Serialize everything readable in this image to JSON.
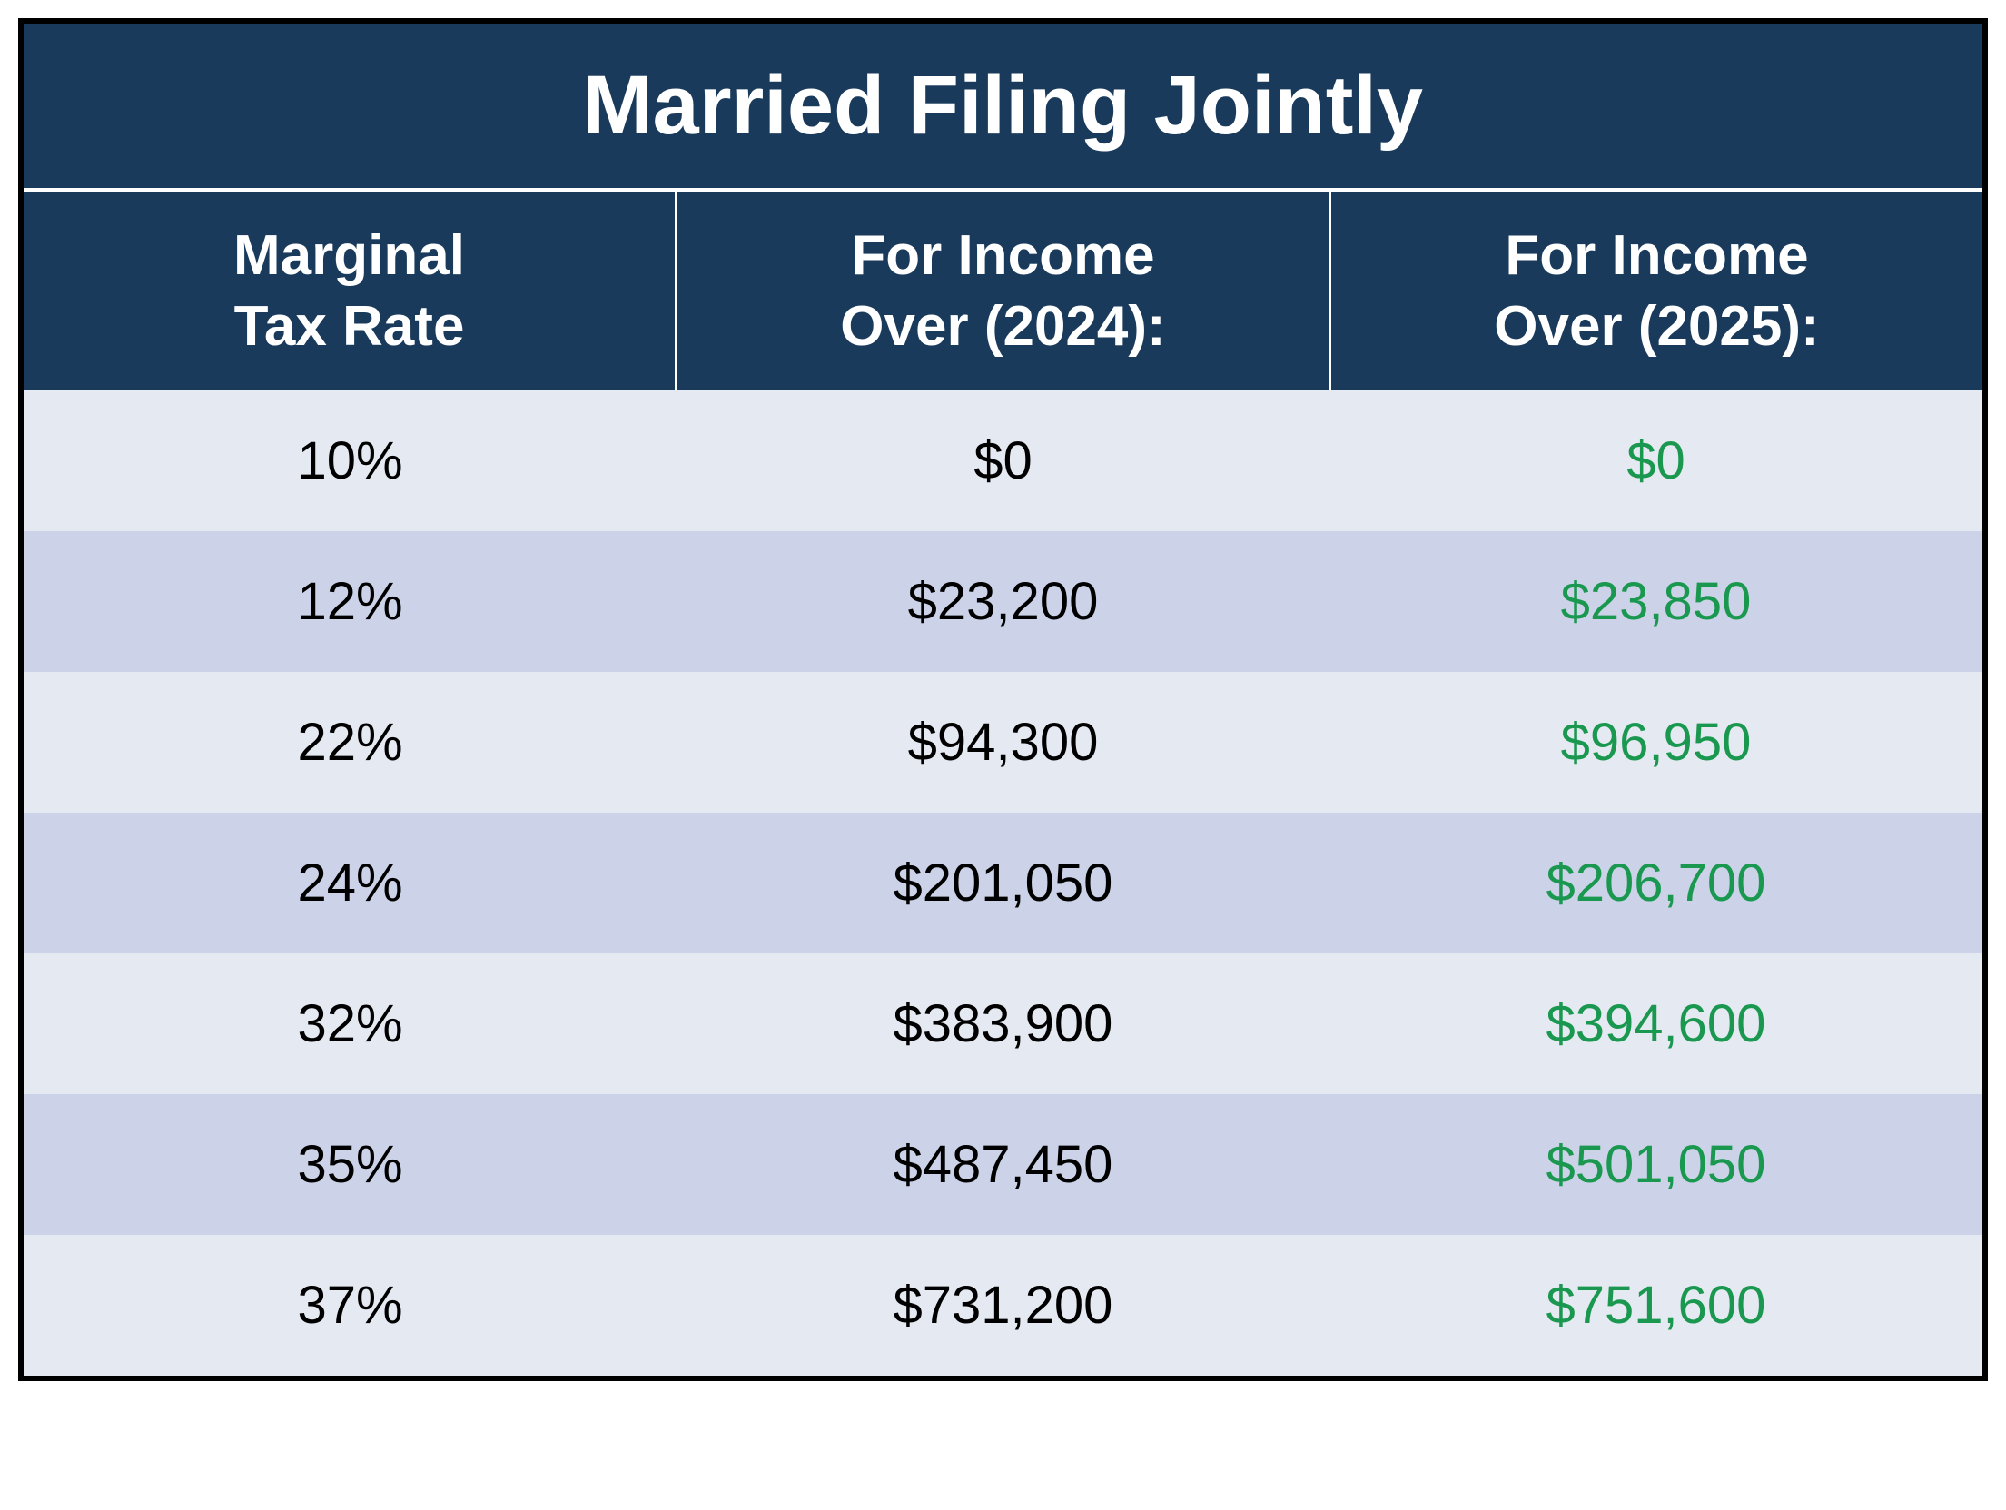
{
  "table": {
    "title": "Married Filing Jointly",
    "title_fontsize": 92,
    "title_color": "#ffffff",
    "title_bg": "#1a3a5c",
    "header_bg": "#1a3a5c",
    "header_color": "#ffffff",
    "header_fontsize": 62,
    "row_light_bg": "#e5e9f2",
    "row_dark_bg": "#ccd3e8",
    "cell_fontsize": 58,
    "cell_color": "#000000",
    "highlight_color": "#1a9850",
    "border_color": "#000000",
    "divider_color": "#ffffff",
    "columns": [
      "Marginal\nTax Rate",
      "For Income\nOver (2024):",
      "For Income\nOver (2025):"
    ],
    "rows": [
      {
        "rate": "10%",
        "y2024": "$0",
        "y2025": "$0"
      },
      {
        "rate": "12%",
        "y2024": "$23,200",
        "y2025": "$23,850"
      },
      {
        "rate": "22%",
        "y2024": "$94,300",
        "y2025": "$96,950"
      },
      {
        "rate": "24%",
        "y2024": "$201,050",
        "y2025": "$206,700"
      },
      {
        "rate": "32%",
        "y2024": "$383,900",
        "y2025": "$394,600"
      },
      {
        "rate": "35%",
        "y2024": "$487,450",
        "y2025": "$501,050"
      },
      {
        "rate": "37%",
        "y2024": "$731,200",
        "y2025": "$751,600"
      }
    ]
  }
}
